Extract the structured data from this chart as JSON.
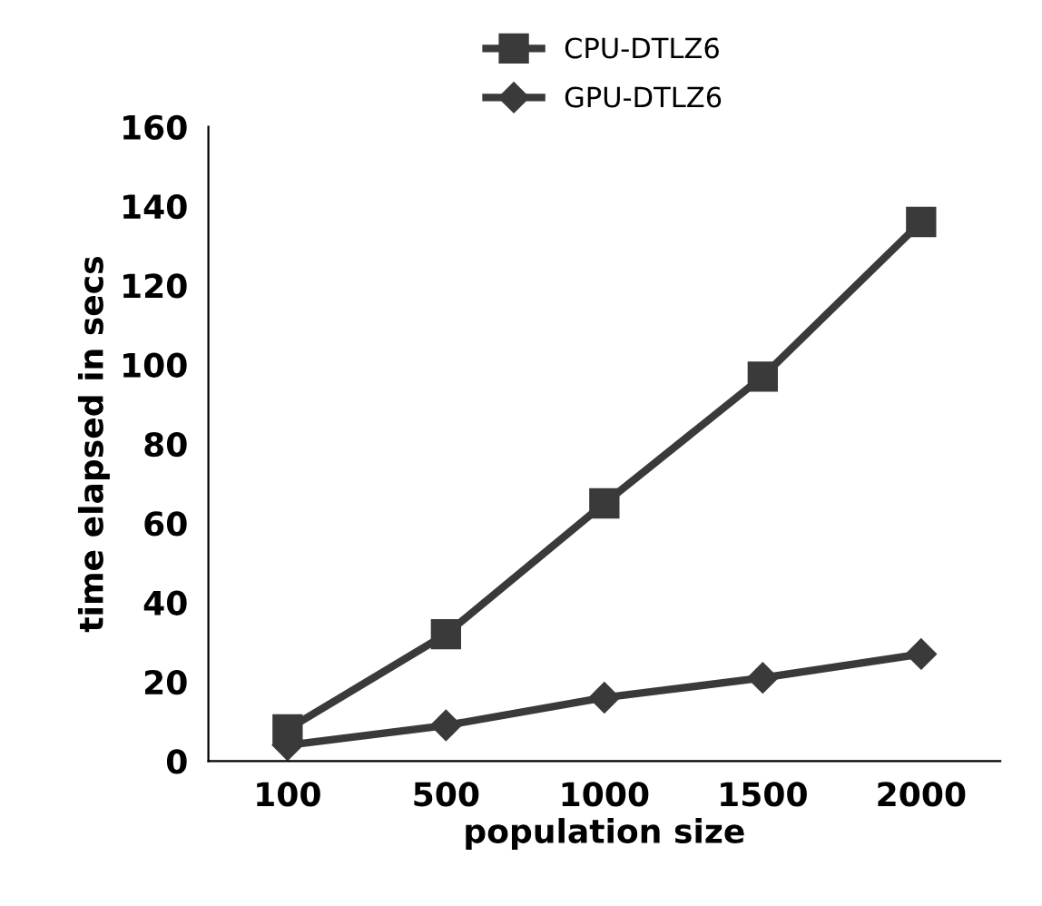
{
  "chart_data": {
    "type": "line",
    "xlabel": "population size",
    "ylabel": "time elapsed in secs",
    "categories": [
      "100",
      "500",
      "1000",
      "1500",
      "2000"
    ],
    "series": [
      {
        "name": "CPU-DTLZ6",
        "color": "#3a3a3a",
        "marker": "square",
        "values": [
          8,
          32,
          65,
          97,
          136
        ]
      },
      {
        "name": "GPU-DTLZ6",
        "color": "#3a3a3a",
        "marker": "diamond",
        "values": [
          4,
          9,
          16,
          21,
          27
        ]
      }
    ],
    "ylim": [
      0,
      160
    ],
    "yticks": [
      0,
      20,
      40,
      60,
      80,
      100,
      120,
      140,
      160
    ],
    "grid": false,
    "legend": "top",
    "line_style": "solid"
  }
}
